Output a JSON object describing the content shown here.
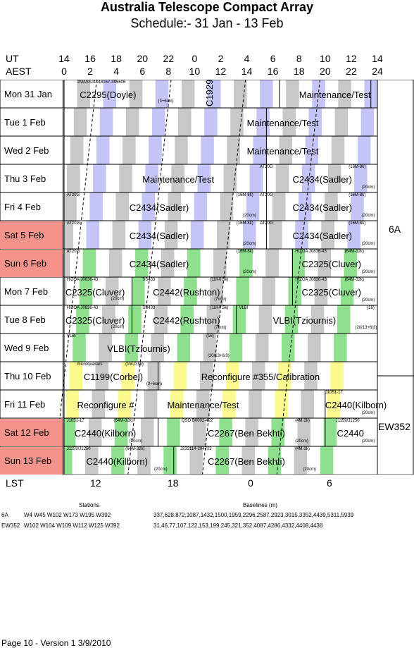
{
  "title": "Australia Telescope Compact Array",
  "subtitle": "Schedule:- 31 Jan - 13 Feb",
  "header": {
    "ut_label": "UT",
    "aest_label": "AEST",
    "ut_ticks": [
      "14",
      "16",
      "18",
      "20",
      "22",
      "0",
      "2",
      "4",
      "6",
      "8",
      "10",
      "12",
      "14"
    ],
    "aest_ticks": [
      "0",
      "2",
      "4",
      "6",
      "8",
      "10",
      "12",
      "14",
      "16",
      "18",
      "20",
      "22",
      "24"
    ]
  },
  "days": [
    {
      "label": "Mon  31 Jan",
      "weekend": false
    },
    {
      "label": "Tue    1  Feb",
      "weekend": false
    },
    {
      "label": "Wed   2  Feb",
      "weekend": false
    },
    {
      "label": "Thu    3  Feb",
      "weekend": false
    },
    {
      "label": "Fri     4  Feb",
      "weekend": false
    },
    {
      "label": "Sat    5  Feb",
      "weekend": true
    },
    {
      "label": "Sun    6  Feb",
      "weekend": true
    },
    {
      "label": "Mon   7  Feb",
      "weekend": false
    },
    {
      "label": "Tue    8  Feb",
      "weekend": false
    },
    {
      "label": "Wed   9  Feb",
      "weekend": false
    },
    {
      "label": "Thu   10 Feb",
      "weekend": false
    },
    {
      "label": "Fri    11 Feb",
      "weekend": false
    },
    {
      "label": "Sat   12 Feb",
      "weekend": true
    },
    {
      "label": "Sun  13 Feb",
      "weekend": true
    }
  ],
  "blocks": {
    "r0a_small": "2MASSJ1048167-395606",
    "r0a_main": "C2295(Doyle)",
    "r0a_band": "(3+6cm)",
    "r0b_main": "C1929",
    "r0c_main": "Maintenance/Test",
    "r1_main": "Maintenance/Test",
    "r2_main": "Maintenance/Test",
    "r3a_main": "Maintenance/Test",
    "r3b_small": "AT20G",
    "r3b_main": "C2434(Sadler)",
    "r3b_cfg": "(16M-8k)",
    "r3b_band": "(20cm)",
    "r4a_small": "AT20G",
    "r4a_main": "C2434(Sadler)",
    "r4a_cfg": "(16M-8k)",
    "r4a_band": "(20cm)",
    "r4b_small": "AT20G",
    "r4b_main": "C2434(Sadler)",
    "r4b_cfg": "(16M-8k)",
    "r4b_band": "(20cm)",
    "r5a_small": "AT20G",
    "r5a_main": "C2434(Sadler)",
    "r5a_cfg": "(16M-8k)",
    "r5a_band": "(20cm)",
    "r5b_small": "AT20G",
    "r5b_main": "C2434(Sadler)",
    "r5b_cfg": "(16M-8k)",
    "r5b_band": "(20cm)",
    "r6a_small": "AT20G",
    "r6a_main": "C2434(Sadler)",
    "r6a_cfg": "(16M-8k)",
    "r6a_band": "(20cm)",
    "r6b_small": "HIZOA J0836-43",
    "r6b_main": "C2325(Cluver)",
    "r6b_cfg": "(64M-32k)",
    "r6b_band": "(20cm)",
    "r7a_small": "HIZOA J0836-43",
    "r7a_main": "C2325(Cluver)",
    "r7a_band": "(20cm)",
    "r7b_small": "SS433",
    "r7b_main": "C2442(Rushton)",
    "r7b_cfg": "(1M-0.5k)",
    "r7b_band": "(7mm)",
    "r7c_small": "HIZOA J0836-43",
    "r7c_main": "C2325(Cluver)",
    "r7c_cfg": "(64M-32k)",
    "r7c_band": "(20cm)",
    "r8a_small": "HIZOA J0836-43",
    "r8a_main": "C2325(Cluver)",
    "r8a_band": "(20cm)",
    "r8b_small": "SS433",
    "r8b_main": "C2442(Rushton)",
    "r8b_cfg": "(1M-0.5k)",
    "r8b_band": "(7mm)",
    "r8c_small": "VLBI",
    "r8c_main": "VLBI(Tziournis)",
    "r8c_cfg": "(16)",
    "r8c_band": "(20/13+6/3)",
    "r9_small": "VLBI",
    "r9_main": "VLBI(Tziournis)",
    "r9_cfg": "(16)",
    "r9_band": "(20/13+6/3)",
    "r10a_small": "microquasars",
    "r10a_main": "C1199(Corbel)",
    "r10a_cfg": "(1M-0.5k)",
    "r10a_band": "(3+6cm)",
    "r10b_main": "Reconfigure #355/Calibration",
    "r11a_main": "Reconfigure #",
    "r11b_main": "Maintenance/Test",
    "r11c_small": "J1051-17",
    "r11c_main": "C2440(Kilborn)",
    "r11c_band": "(20cm)",
    "r12a_small": "J1051-17",
    "r12a_main": "C2440(Kilborn)",
    "r12a_cfg": "(64M-32k)",
    "r12a_band": "(20cm)",
    "r12b_small": "QSO B0002-422",
    "r12b_main": "C2267(Ben Bekhti)",
    "r12b_cfg": "(4M-2k)",
    "r12b_band": "(20cm)",
    "r12c_small": "J1159/J1250",
    "r12c_main": "C2440",
    "r12c_band": "(20cm)",
    "r13a_small": "J1159/J1250",
    "r13a_main": "C2440(Kilborn)",
    "r13a_cfg": "(64M-32k)",
    "r13a_band": "(20cm)",
    "r13b_small": "J232114-294723",
    "r13b_main": "C2267(Ben Bekhti)",
    "r13b_cfg": "(4M-2k)",
    "r13b_band": "(20cm)"
  },
  "configs": {
    "first": "6A",
    "second": "EW352"
  },
  "lst": {
    "label": "LST",
    "ticks": [
      "12",
      "18",
      "0",
      "6"
    ]
  },
  "footer": {
    "stations_header": "Stations",
    "baselines_header": "Baselines (m)",
    "rows": [
      {
        "cfg": "6A",
        "stations": "W4  W45  W102  W173  W195  W392",
        "baselines": "337,628,872,1087,1432,1500,1959,2296,2587,2923,3015,3352,4439,5311,5939"
      },
      {
        "cfg": "EW352",
        "stations": "W102  W104  W109  W112  W125  W392",
        "baselines": "31,46,77,107,122,153,199,245,321,352,4087,4286,4332,4408,4438"
      }
    ]
  },
  "page_info": "Page 10 - Version 1   3/9/2010",
  "colors": {
    "gray": "#c8c8c8",
    "blue": "#c4c4f6",
    "green": "#8ee08e",
    "yellow": "#fafa90",
    "weekend": "#f4938b"
  }
}
